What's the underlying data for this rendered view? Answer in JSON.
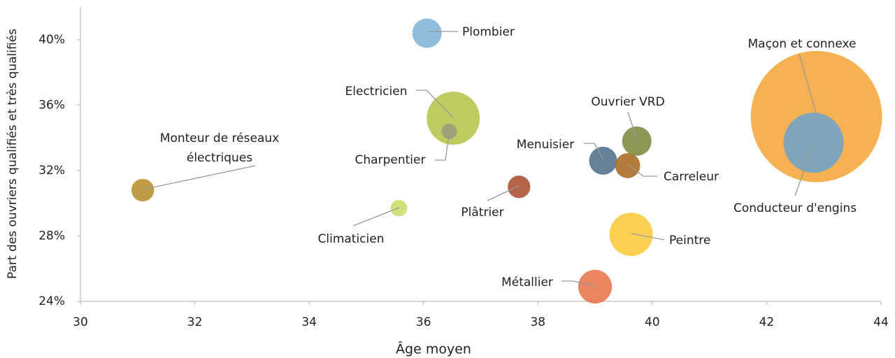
{
  "chart_data": {
    "type": "bubble",
    "xlabel": "Âge moyen",
    "ylabel": "Part des ouvriers qualifiés et très qualifiés",
    "categories": [
      "Plombier",
      "Electricien",
      "Charpentier",
      "Monteur de réseaux électriques",
      "Climaticien",
      "Plâtrier",
      "Menuisier",
      "Ouvrier VRD",
      "Carreleur",
      "Peintre",
      "Métallier",
      "Maçon et connexe",
      "Conducteur d'engins"
    ],
    "x": [
      36.06,
      36.52,
      36.45,
      31.09,
      35.57,
      37.67,
      39.14,
      39.73,
      39.57,
      39.63,
      39.0,
      42.87,
      42.82
    ],
    "y": [
      40.4,
      35.2,
      34.4,
      30.8,
      29.7,
      31.0,
      32.6,
      33.8,
      32.3,
      28.1,
      24.9,
      35.3,
      33.7
    ],
    "sizes": [
      4.4,
      14.4,
      1.2,
      2.6,
      1.4,
      2.6,
      4.0,
      4.4,
      3.2,
      9.6,
      5.8,
      88,
      18.5
    ],
    "colors": [
      "#7fb4d6",
      "#b5c44a",
      "#9a9a7c",
      "#b58e2c",
      "#c9dc6a",
      "#a84f31",
      "#4e6f89",
      "#7d8a3f",
      "#a86a21",
      "#fbc93a",
      "#e8734a",
      "#f5a73a",
      "#6fa2c8"
    ],
    "xlim": [
      30,
      44
    ],
    "xticks": [
      30,
      32,
      34,
      36,
      38,
      40,
      42,
      44
    ],
    "ylim": [
      24,
      42
    ],
    "yticks": [
      {
        "value": 24,
        "label": "24%"
      },
      {
        "value": 28,
        "label": "28%"
      },
      {
        "value": 32,
        "label": "32%"
      },
      {
        "value": 36,
        "label": "36%"
      },
      {
        "value": 40,
        "label": "40%"
      }
    ]
  }
}
